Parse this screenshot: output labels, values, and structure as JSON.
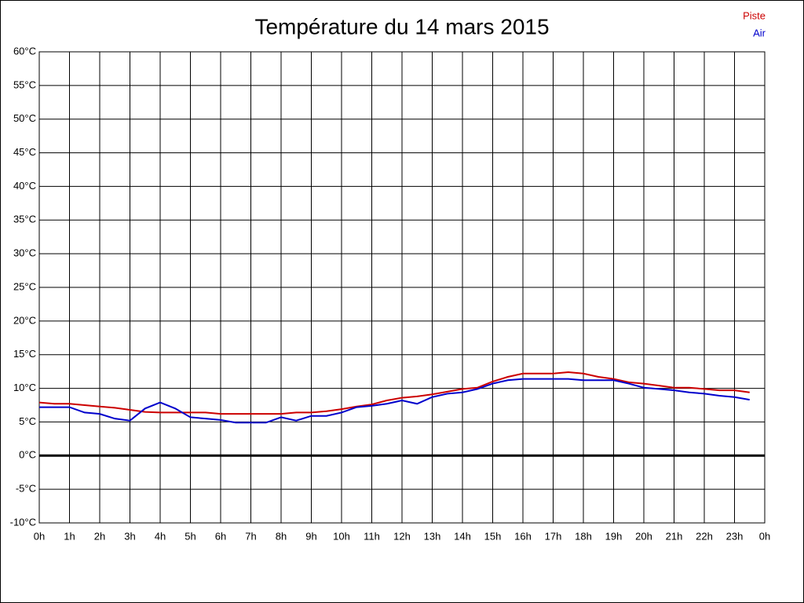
{
  "chart_data": {
    "type": "line",
    "title": "Température du 14 mars 2015",
    "x": [
      0,
      0.5,
      1,
      1.5,
      2,
      2.5,
      3,
      3.5,
      4,
      4.5,
      5,
      5.5,
      6,
      6.5,
      7,
      7.5,
      8,
      8.5,
      9,
      9.5,
      10,
      10.5,
      11,
      11.5,
      12,
      12.5,
      13,
      13.5,
      14,
      14.5,
      15,
      15.5,
      16,
      16.5,
      17,
      17.5,
      18,
      18.5,
      19,
      19.5,
      20,
      20.5,
      21,
      21.5,
      22,
      22.5,
      23,
      23.5
    ],
    "series": [
      {
        "name": "Piste",
        "color": "#cc0000",
        "values": [
          7.9,
          7.7,
          7.7,
          7.5,
          7.3,
          7.1,
          6.8,
          6.5,
          6.4,
          6.4,
          6.4,
          6.4,
          6.2,
          6.2,
          6.2,
          6.2,
          6.2,
          6.4,
          6.4,
          6.6,
          6.9,
          7.3,
          7.6,
          8.2,
          8.6,
          8.8,
          9.1,
          9.5,
          9.9,
          10.1,
          11.0,
          11.7,
          12.2,
          12.2,
          12.2,
          12.4,
          12.2,
          11.7,
          11.4,
          10.9,
          10.7,
          10.4,
          10.1,
          10.1,
          9.9,
          9.7,
          9.7,
          9.4
        ]
      },
      {
        "name": "Air",
        "color": "#0000cc",
        "values": [
          7.2,
          7.2,
          7.2,
          6.4,
          6.2,
          5.5,
          5.2,
          7.0,
          7.9,
          7.0,
          5.7,
          5.5,
          5.3,
          4.9,
          4.9,
          4.9,
          5.7,
          5.2,
          5.9,
          5.9,
          6.4,
          7.2,
          7.4,
          7.7,
          8.2,
          7.7,
          8.7,
          9.2,
          9.4,
          9.9,
          10.7,
          11.2,
          11.4,
          11.4,
          11.4,
          11.4,
          11.2,
          11.2,
          11.2,
          10.7,
          10.1,
          9.9,
          9.7,
          9.4,
          9.2,
          8.9,
          8.7,
          8.3
        ]
      }
    ],
    "xlim": [
      0,
      24
    ],
    "xticks": [
      {
        "value": 0,
        "label": "0h"
      },
      {
        "value": 1,
        "label": "1h"
      },
      {
        "value": 2,
        "label": "2h"
      },
      {
        "value": 3,
        "label": "3h"
      },
      {
        "value": 4,
        "label": "4h"
      },
      {
        "value": 5,
        "label": "5h"
      },
      {
        "value": 6,
        "label": "6h"
      },
      {
        "value": 7,
        "label": "7h"
      },
      {
        "value": 8,
        "label": "8h"
      },
      {
        "value": 9,
        "label": "9h"
      },
      {
        "value": 10,
        "label": "10h"
      },
      {
        "value": 11,
        "label": "11h"
      },
      {
        "value": 12,
        "label": "12h"
      },
      {
        "value": 13,
        "label": "13h"
      },
      {
        "value": 14,
        "label": "14h"
      },
      {
        "value": 15,
        "label": "15h"
      },
      {
        "value": 16,
        "label": "16h"
      },
      {
        "value": 17,
        "label": "17h"
      },
      {
        "value": 18,
        "label": "18h"
      },
      {
        "value": 19,
        "label": "19h"
      },
      {
        "value": 20,
        "label": "20h"
      },
      {
        "value": 21,
        "label": "21h"
      },
      {
        "value": 22,
        "label": "22h"
      },
      {
        "value": 23,
        "label": "23h"
      },
      {
        "value": 24,
        "label": "0h"
      }
    ],
    "ylim": [
      -10,
      60
    ],
    "yticks": [
      {
        "value": -10,
        "label": "-10°C"
      },
      {
        "value": -5,
        "label": "-5°C"
      },
      {
        "value": 0,
        "label": "0°C"
      },
      {
        "value": 5,
        "label": "5°C"
      },
      {
        "value": 10,
        "label": "10°C"
      },
      {
        "value": 15,
        "label": "15°C"
      },
      {
        "value": 20,
        "label": "20°C"
      },
      {
        "value": 25,
        "label": "25°C"
      },
      {
        "value": 30,
        "label": "30°C"
      },
      {
        "value": 35,
        "label": "35°C"
      },
      {
        "value": 40,
        "label": "40°C"
      },
      {
        "value": 45,
        "label": "45°C"
      },
      {
        "value": 50,
        "label": "50°C"
      },
      {
        "value": 55,
        "label": "55°C"
      },
      {
        "value": 60,
        "label": "60°C"
      }
    ],
    "grid": true,
    "legend": "top-right"
  }
}
